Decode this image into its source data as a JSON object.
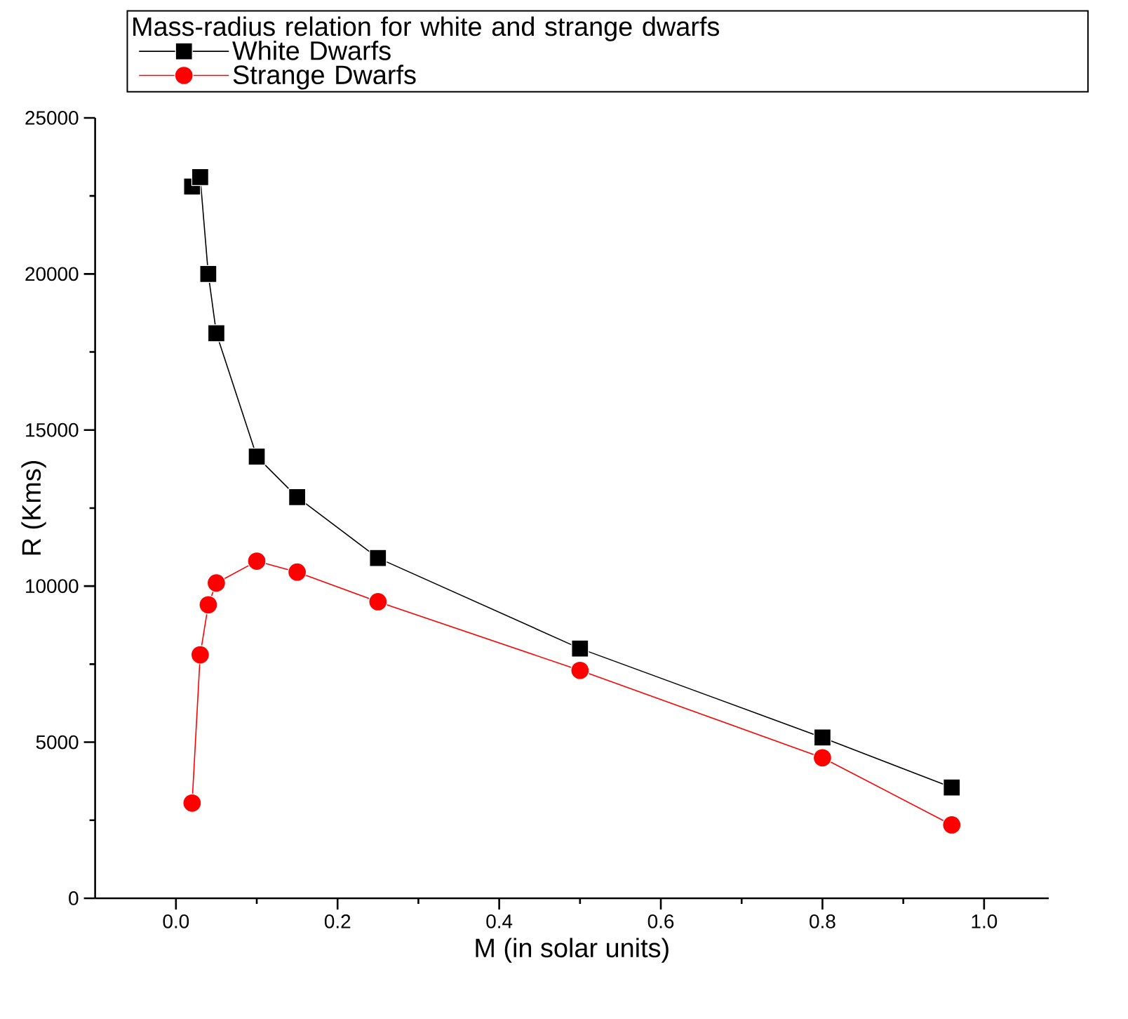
{
  "chart_data": {
    "type": "line",
    "legend_title": "Mass-radius relation for white and strange dwarfs",
    "xlabel": "M (in solar units)",
    "ylabel": "R (Kms)",
    "x": [
      0.02,
      0.03,
      0.04,
      0.05,
      0.1,
      0.15,
      0.25,
      0.5,
      0.8,
      0.96
    ],
    "series": [
      {
        "name": "White Dwarfs",
        "color": "#000000",
        "marker": "square",
        "values": [
          22800,
          23100,
          20000,
          18100,
          14150,
          12850,
          10900,
          8000,
          5150,
          3550
        ]
      },
      {
        "name": "Strange Dwarfs",
        "color": "#ff0000",
        "marker": "circle",
        "values": [
          3050,
          7800,
          9400,
          10100,
          10800,
          10450,
          9500,
          7300,
          4500,
          2350
        ]
      }
    ],
    "xlim": [
      -0.1,
      1.08
    ],
    "ylim": [
      0,
      25000
    ],
    "xticks": [
      {
        "value": 0,
        "label": "0.0"
      },
      0.2,
      0.4,
      0.6,
      0.8,
      {
        "value": 1,
        "label": "1.0"
      }
    ],
    "yticks": [
      0,
      5000,
      10000,
      15000,
      20000,
      25000
    ],
    "grid": false,
    "legend": "top",
    "line_style": "solid"
  }
}
